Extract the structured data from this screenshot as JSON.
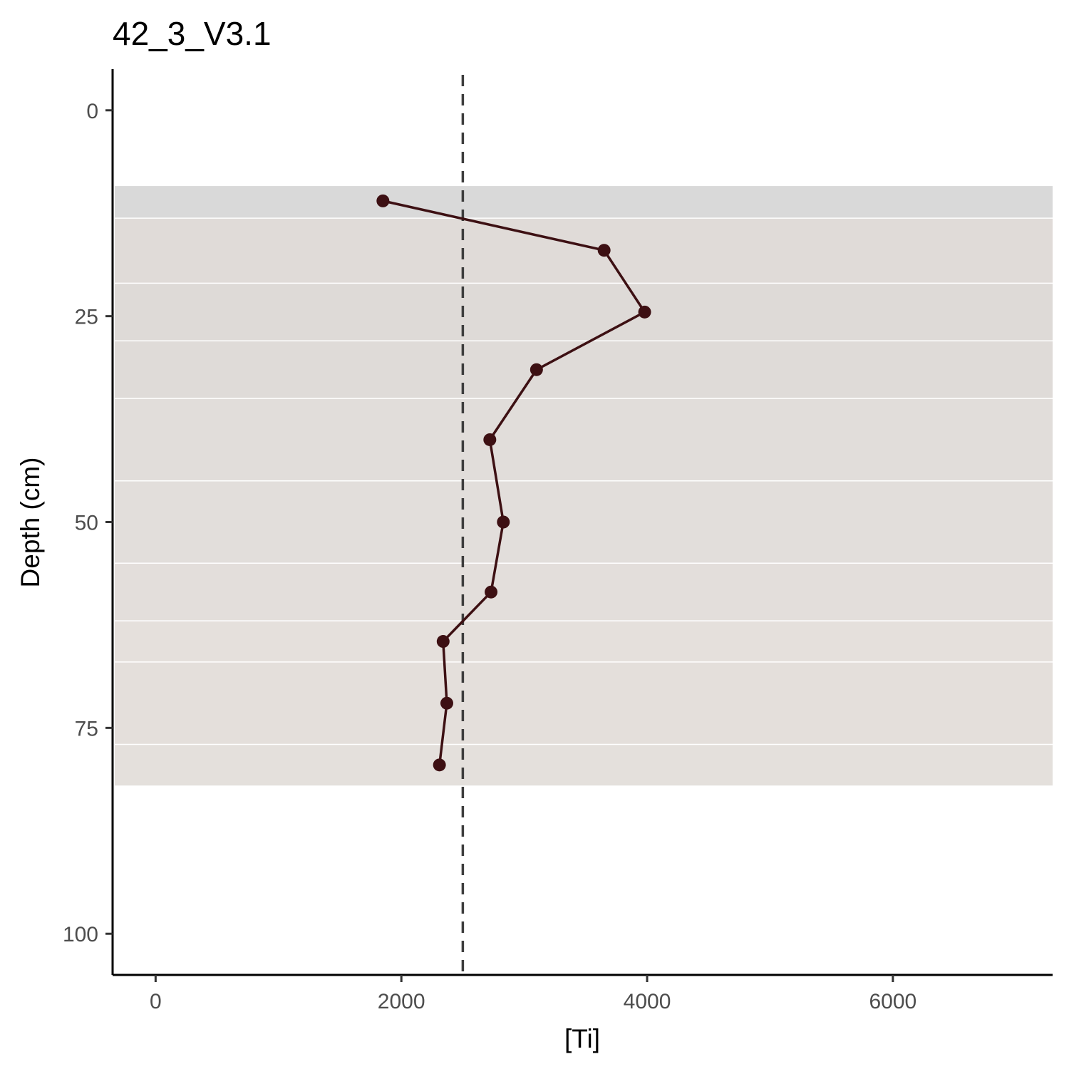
{
  "chart_data": {
    "type": "line",
    "title": "42_3_V3.1",
    "xlabel": "[Ti]",
    "ylabel": "Depth (cm)",
    "xlim": [
      -350,
      7300
    ],
    "ylim": [
      105,
      -5
    ],
    "y_reversed": true,
    "x_ticks": [
      0,
      2000,
      4000,
      6000
    ],
    "x_tick_labels": [
      "0",
      "2000",
      "4000",
      "6000"
    ],
    "y_ticks": [
      0,
      25,
      50,
      75,
      100
    ],
    "y_tick_labels": [
      "0",
      "25",
      "50",
      "75",
      "100"
    ],
    "grid": false,
    "legend": "none",
    "reference_line": {
      "x": 2500,
      "style": "dashed",
      "color": "#3d3d3d"
    },
    "bands": [
      {
        "from": 9.2,
        "to": 13.1,
        "color": "#d9d9d9"
      },
      {
        "from": 13.1,
        "to": 21.0,
        "color": "#e0dbd8"
      },
      {
        "from": 21.0,
        "to": 28.0,
        "color": "#dedad7"
      },
      {
        "from": 28.0,
        "to": 35.0,
        "color": "#dfdbd8"
      },
      {
        "from": 35.0,
        "to": 45.0,
        "color": "#e1ddda"
      },
      {
        "from": 45.0,
        "to": 55.0,
        "color": "#e2dedb"
      },
      {
        "from": 55.0,
        "to": 62.0,
        "color": "#e3dedb"
      },
      {
        "from": 62.0,
        "to": 67.0,
        "color": "#e5e0dc"
      },
      {
        "from": 67.0,
        "to": 77.0,
        "color": "#e4dfdb"
      },
      {
        "from": 77.0,
        "to": 82.0,
        "color": "#e4e0dc"
      }
    ],
    "series": [
      {
        "color": "#3d1013",
        "points": [
          {
            "x": 1850,
            "y": 11
          },
          {
            "x": 3650,
            "y": 17
          },
          {
            "x": 3980,
            "y": 24.5
          },
          {
            "x": 3100,
            "y": 31.5
          },
          {
            "x": 2720,
            "y": 40
          },
          {
            "x": 2830,
            "y": 50
          },
          {
            "x": 2730,
            "y": 58.5
          },
          {
            "x": 2340,
            "y": 64.5
          },
          {
            "x": 2370,
            "y": 72
          },
          {
            "x": 2310,
            "y": 79.5
          }
        ]
      }
    ]
  }
}
